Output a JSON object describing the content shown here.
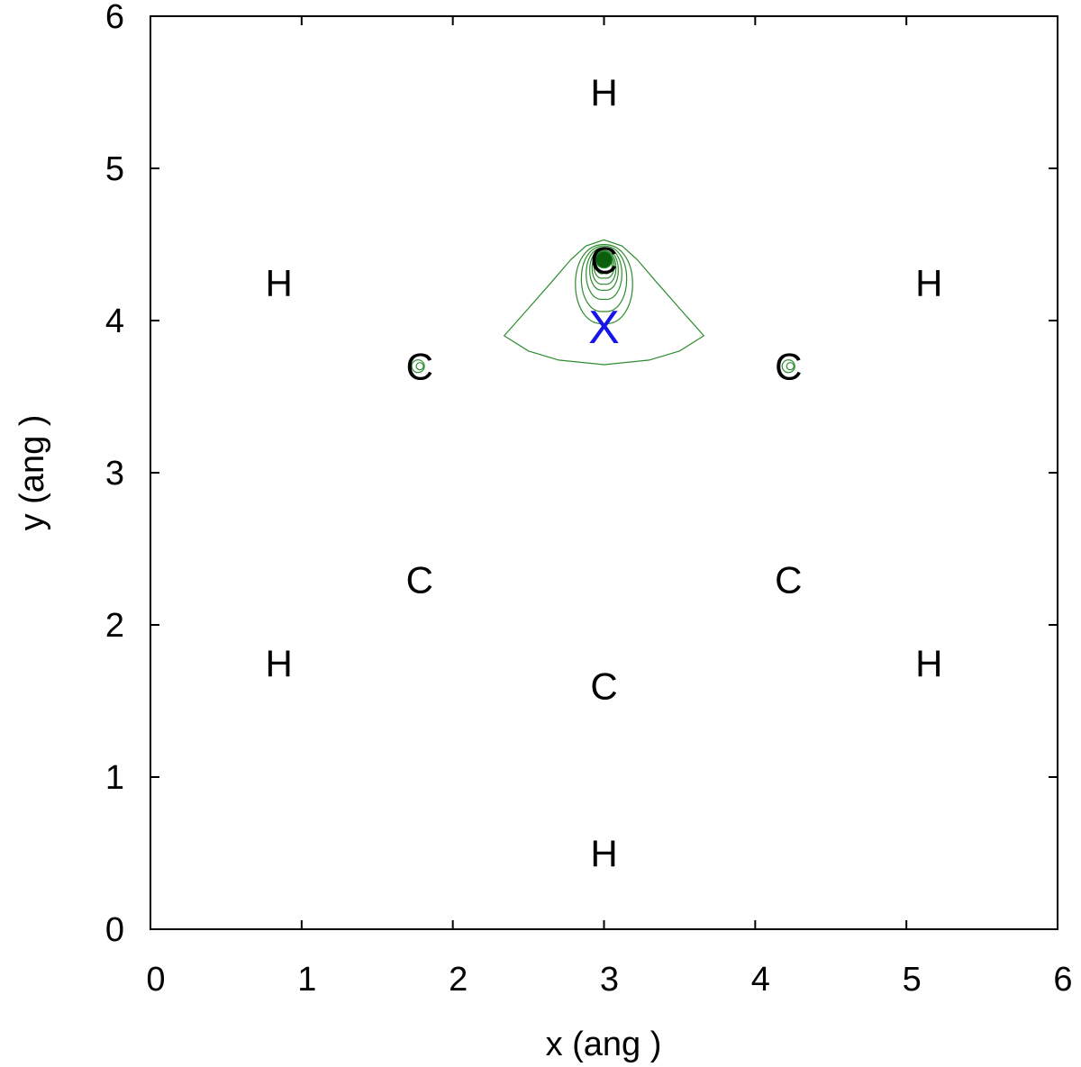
{
  "chart_data": {
    "type": "contour",
    "xlabel": "x (ang )",
    "ylabel": "y (ang )",
    "xlim": [
      0,
      6
    ],
    "ylim": [
      0,
      6
    ],
    "xticks": [
      "0",
      "1",
      "2",
      "3",
      "4",
      "5",
      "6"
    ],
    "yticks": [
      "0",
      "1",
      "2",
      "3",
      "4",
      "5",
      "6"
    ],
    "grid": false,
    "legend": "none",
    "colors": {
      "contour": "#2e8b2e",
      "contour_fill": "#0b5e0b",
      "marker": "#1515e8",
      "text": "#000000"
    },
    "atoms": [
      {
        "label": "H",
        "x": 3.0,
        "y": 5.5
      },
      {
        "label": "H",
        "x": 0.85,
        "y": 4.25
      },
      {
        "label": "H",
        "x": 5.15,
        "y": 4.25
      },
      {
        "label": "C",
        "x": 3.0,
        "y": 4.4
      },
      {
        "label": "C",
        "x": 1.78,
        "y": 3.7
      },
      {
        "label": "C",
        "x": 4.22,
        "y": 3.7
      },
      {
        "label": "C",
        "x": 1.78,
        "y": 2.3
      },
      {
        "label": "C",
        "x": 4.22,
        "y": 2.3
      },
      {
        "label": "C",
        "x": 3.0,
        "y": 1.6
      },
      {
        "label": "H",
        "x": 0.85,
        "y": 1.75
      },
      {
        "label": "H",
        "x": 5.15,
        "y": 1.75
      },
      {
        "label": "H",
        "x": 3.0,
        "y": 0.5
      }
    ],
    "marker": {
      "label": "X",
      "x": 3.0,
      "y": 3.96
    },
    "contour_center": {
      "x": 3.0,
      "y": 4.4
    },
    "contour_outer": [
      [
        2.34,
        3.9
      ],
      [
        2.5,
        4.08
      ],
      [
        2.65,
        4.25
      ],
      [
        2.78,
        4.4
      ],
      [
        2.88,
        4.49
      ],
      [
        3.0,
        4.53
      ],
      [
        3.12,
        4.49
      ],
      [
        3.22,
        4.4
      ],
      [
        3.35,
        4.25
      ],
      [
        3.5,
        4.08
      ],
      [
        3.66,
        3.9
      ],
      [
        3.5,
        3.8
      ],
      [
        3.3,
        3.74
      ],
      [
        3.0,
        3.71
      ],
      [
        2.7,
        3.74
      ],
      [
        2.5,
        3.8
      ],
      [
        2.34,
        3.9
      ]
    ],
    "contour_loops": [
      {
        "bottom": 3.98,
        "top": 4.5,
        "halfwidth": 0.24
      },
      {
        "bottom": 4.06,
        "top": 4.49,
        "halfwidth": 0.19
      },
      {
        "bottom": 4.14,
        "top": 4.48,
        "halfwidth": 0.15
      },
      {
        "bottom": 4.2,
        "top": 4.47,
        "halfwidth": 0.12
      },
      {
        "bottom": 4.24,
        "top": 4.46,
        "halfwidth": 0.1
      },
      {
        "bottom": 4.28,
        "top": 4.45,
        "halfwidth": 0.085
      },
      {
        "bottom": 4.31,
        "top": 4.45,
        "halfwidth": 0.07
      }
    ],
    "contour_core_radius": 0.055,
    "small_loops": [
      {
        "x": 1.77,
        "y": 3.7
      },
      {
        "x": 4.22,
        "y": 3.7
      }
    ]
  }
}
